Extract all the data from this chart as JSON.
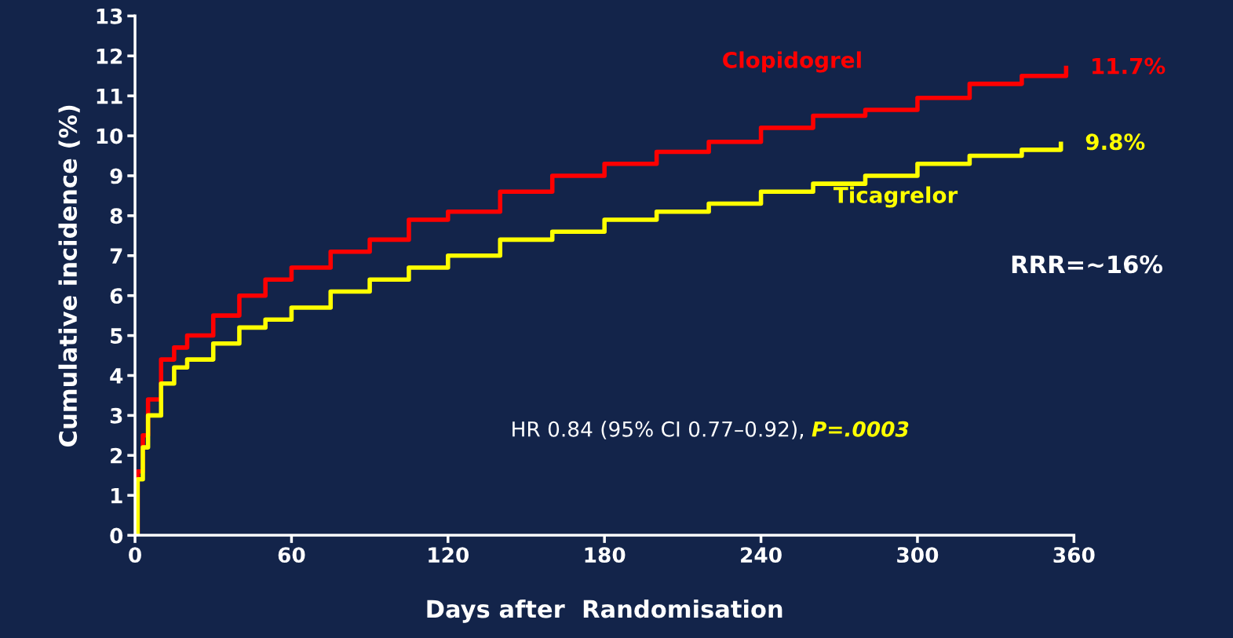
{
  "chart_data": {
    "type": "step",
    "xlabel": "Days after  Randomisation",
    "ylabel": "Cumulative incidence (%)",
    "xlim": [
      0,
      360
    ],
    "xticks": [
      0,
      60,
      120,
      180,
      240,
      300,
      360
    ],
    "ylim": [
      0,
      13
    ],
    "yticks": [
      0,
      1,
      2,
      3,
      4,
      5,
      6,
      7,
      8,
      9,
      10,
      11,
      12,
      13
    ],
    "grid": false,
    "legend": false,
    "series": [
      {
        "name": "Clopidogrel",
        "color": "#ff0000",
        "x": [
          0,
          1,
          3,
          5,
          10,
          15,
          20,
          30,
          40,
          50,
          60,
          75,
          90,
          105,
          120,
          140,
          160,
          180,
          200,
          220,
          240,
          260,
          280,
          300,
          320,
          340,
          357
        ],
        "values": [
          0,
          1.6,
          2.5,
          3.4,
          4.4,
          4.7,
          5.0,
          5.5,
          6.0,
          6.4,
          6.7,
          7.1,
          7.4,
          7.9,
          8.1,
          8.6,
          9.0,
          9.3,
          9.6,
          9.85,
          10.2,
          10.5,
          10.65,
          10.95,
          11.3,
          11.5,
          11.7
        ]
      },
      {
        "name": "Ticagrelor",
        "color": "#ffff00",
        "x": [
          0,
          1,
          3,
          5,
          10,
          15,
          20,
          30,
          40,
          50,
          60,
          75,
          90,
          105,
          120,
          140,
          160,
          180,
          200,
          220,
          240,
          260,
          280,
          300,
          320,
          340,
          355
        ],
        "values": [
          0,
          1.4,
          2.2,
          3.0,
          3.8,
          4.2,
          4.4,
          4.8,
          5.2,
          5.4,
          5.7,
          6.1,
          6.4,
          6.7,
          7.0,
          7.4,
          7.6,
          7.9,
          8.1,
          8.3,
          8.6,
          8.8,
          9.0,
          9.3,
          9.5,
          9.65,
          9.8
        ]
      }
    ],
    "annotations": [
      {
        "text": "11.7%",
        "x": 357,
        "y": 11.7
      },
      {
        "text": "9.8%",
        "x": 355,
        "y": 9.8
      },
      "RRR=~16%",
      "HR 0.84 (95% CI 0.77–0.92), ",
      "P=.0003"
    ]
  }
}
